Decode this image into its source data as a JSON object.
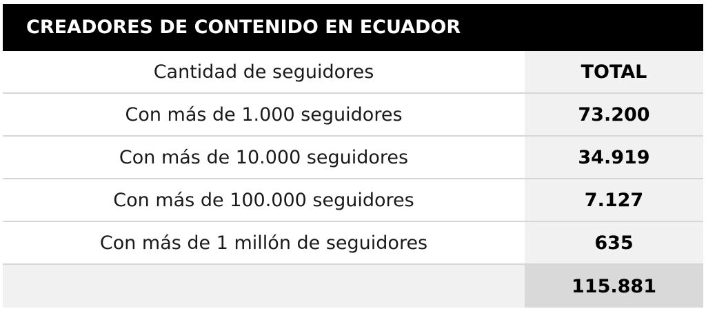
{
  "chart_data": {
    "type": "table",
    "title": "CREADORES DE CONTENIDO EN ECUADOR",
    "columns": [
      "Cantidad de seguidores",
      "TOTAL"
    ],
    "rows": [
      {
        "label": "Con más de 1.000 seguidores",
        "value": "73.200"
      },
      {
        "label": "Con más de 10.000 seguidores",
        "value": "34.919"
      },
      {
        "label": "Con más de 100.000 seguidores",
        "value": "7.127"
      },
      {
        "label": "Con más de 1 millón de seguidores",
        "value": "635"
      }
    ],
    "total": {
      "label": "",
      "value": "115.881"
    }
  },
  "colors": {
    "title_background": "#000000",
    "title_text": "#ffffff",
    "value_column_background": "#f1f1f1",
    "total_value_background": "#d9d9d9",
    "row_divider": "#d6d6d6"
  }
}
